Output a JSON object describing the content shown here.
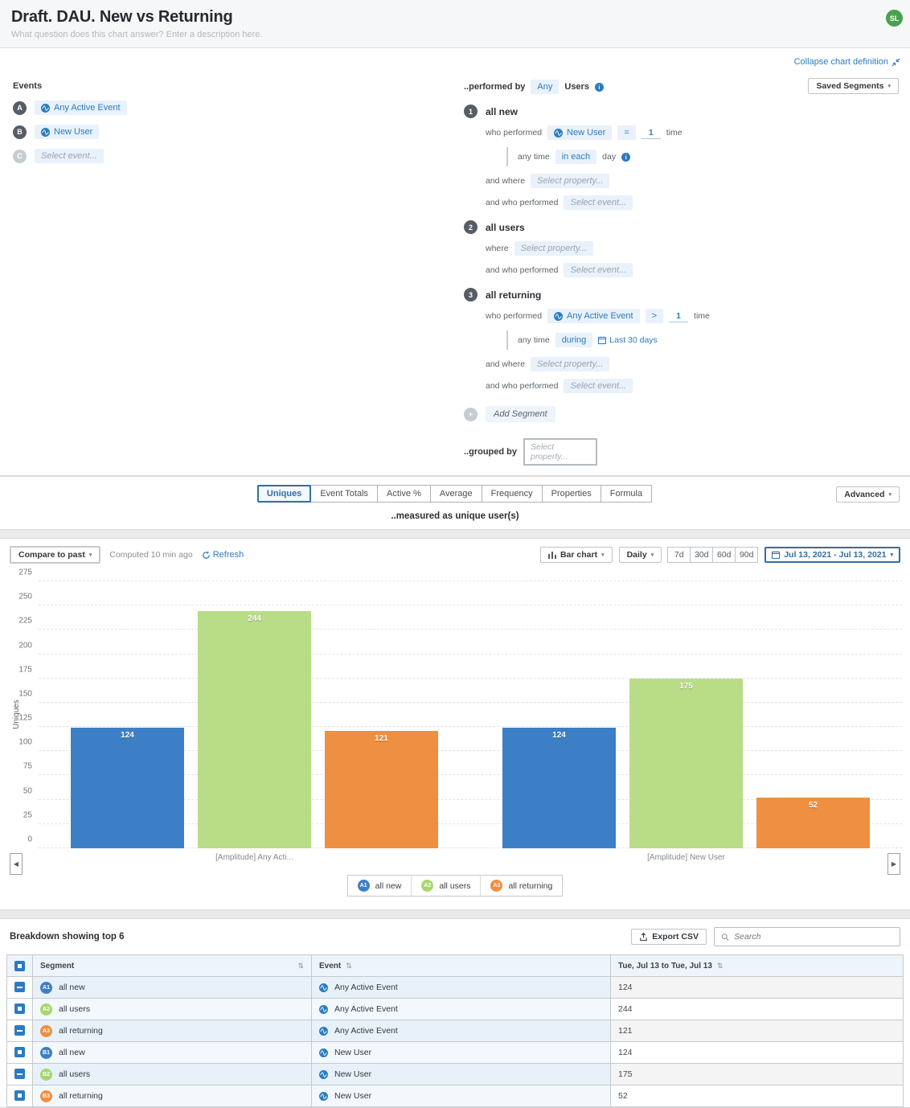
{
  "header": {
    "title": "Draft. DAU. New vs Returning",
    "description_placeholder": "What question does this chart answer? Enter a description here.",
    "avatar": "SL"
  },
  "chart_definition": {
    "collapse_label": "Collapse chart definition",
    "events": {
      "label": "Events",
      "items": [
        {
          "badge": "A",
          "name": "Any Active Event",
          "placeholder": false
        },
        {
          "badge": "B",
          "name": "New User",
          "placeholder": false
        },
        {
          "badge": "C",
          "name": "Select event...",
          "placeholder": true
        }
      ]
    },
    "performed_by": {
      "prefix": "..performed by",
      "any": "Any",
      "users": "Users"
    },
    "saved_segments_label": "Saved Segments",
    "segments": [
      {
        "num": "1",
        "name": "all new",
        "rows": [
          {
            "label": "who performed",
            "indent": false,
            "parts": [
              [
                "event",
                "New User"
              ],
              [
                "pill",
                "="
              ],
              [
                "count",
                "1"
              ],
              [
                "text",
                "time"
              ]
            ]
          },
          {
            "label": "any time",
            "indent": true,
            "parts": [
              [
                "pill",
                "in each"
              ],
              [
                "text",
                "day"
              ],
              [
                "info",
                "i"
              ]
            ]
          },
          {
            "label": "and where",
            "indent": false,
            "parts": [
              [
                "placeholder",
                "Select property..."
              ]
            ]
          },
          {
            "label": "and who performed",
            "indent": false,
            "parts": [
              [
                "placeholder",
                "Select event..."
              ]
            ]
          }
        ]
      },
      {
        "num": "2",
        "name": "all users",
        "rows": [
          {
            "label": "where",
            "indent": false,
            "parts": [
              [
                "placeholder",
                "Select property..."
              ]
            ]
          },
          {
            "label": "and who performed",
            "indent": false,
            "parts": [
              [
                "placeholder",
                "Select event..."
              ]
            ]
          }
        ]
      },
      {
        "num": "3",
        "name": "all returning",
        "rows": [
          {
            "label": "who performed",
            "indent": false,
            "parts": [
              [
                "event",
                "Any Active Event"
              ],
              [
                "pill",
                ">"
              ],
              [
                "count",
                "1"
              ],
              [
                "text",
                "time"
              ]
            ]
          },
          {
            "label": "any time",
            "indent": true,
            "parts": [
              [
                "pill",
                "during"
              ],
              [
                "date",
                "Last 30 days"
              ]
            ]
          },
          {
            "label": "and where",
            "indent": false,
            "parts": [
              [
                "placeholder",
                "Select property..."
              ]
            ]
          },
          {
            "label": "and who performed",
            "indent": false,
            "parts": [
              [
                "placeholder",
                "Select event..."
              ]
            ]
          }
        ]
      }
    ],
    "add_segment_label": "Add Segment",
    "grouped_by": {
      "label": "..grouped by",
      "placeholder": "Select property..."
    }
  },
  "metric_tabs": {
    "tabs": [
      "Uniques",
      "Event Totals",
      "Active %",
      "Average",
      "Frequency",
      "Properties",
      "Formula"
    ],
    "active": "Uniques",
    "advanced_label": "Advanced",
    "measured_as": "..measured as unique user(s)"
  },
  "chart_controls": {
    "compare_label": "Compare to past",
    "computed_label": "Computed 10 min ago",
    "refresh_label": "Refresh",
    "chart_type_label": "Bar chart",
    "interval_label": "Daily",
    "ranges": [
      "7d",
      "30d",
      "60d",
      "90d"
    ],
    "date_range_label": "Jul 13, 2021 - Jul 13, 2021"
  },
  "chart_data": {
    "type": "bar",
    "ylabel": "Uniques",
    "ylim": [
      0,
      275
    ],
    "ytick_step": 25,
    "grid": "dashed-horizontal",
    "legend_position": "bottom",
    "categories": [
      "[Amplitude] Any Acti...",
      "[Amplitude] New User"
    ],
    "series": [
      {
        "name": "all new",
        "color": "#3d7fc7",
        "values": [
          124,
          124
        ]
      },
      {
        "name": "all users",
        "color": "#b9dc87",
        "values": [
          244,
          175
        ]
      },
      {
        "name": "all returning",
        "color": "#ef8f41",
        "values": [
          121,
          52
        ]
      }
    ],
    "legend": [
      {
        "badge": "A1",
        "label": "all new",
        "color": "#3d7fc7"
      },
      {
        "badge": "A2",
        "label": "all users",
        "color": "#a8d66e"
      },
      {
        "badge": "A3",
        "label": "all returning",
        "color": "#ef8f41"
      }
    ]
  },
  "breakdown": {
    "title": "Breakdown showing top 6",
    "export_label": "Export CSV",
    "search_placeholder": "Search",
    "columns": {
      "segment": "Segment",
      "event": "Event",
      "date": "Tue, Jul 13 to Tue, Jul 13"
    },
    "rows": [
      {
        "badge": "A1",
        "color": "#3d7fc7",
        "segment": "all new",
        "event": "Any Active Event",
        "value": "124"
      },
      {
        "badge": "A2",
        "color": "#a8d66e",
        "segment": "all users",
        "event": "Any Active Event",
        "value": "244"
      },
      {
        "badge": "A3",
        "color": "#ef8f41",
        "segment": "all returning",
        "event": "Any Active Event",
        "value": "121"
      },
      {
        "badge": "B1",
        "color": "#3d7fc7",
        "segment": "all new",
        "event": "New User",
        "value": "124"
      },
      {
        "badge": "B2",
        "color": "#a8d66e",
        "segment": "all users",
        "event": "New User",
        "value": "175"
      },
      {
        "badge": "B3",
        "color": "#ef8f41",
        "segment": "all returning",
        "event": "New User",
        "value": "52"
      }
    ]
  }
}
